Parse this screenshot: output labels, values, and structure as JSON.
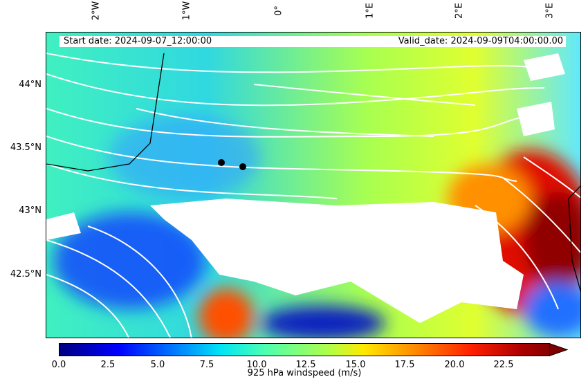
{
  "header": {
    "start_date": "Start date: 2024-09-07_12:00:00",
    "valid_date": "Valid_date: 2024-09-09T04:00:00.00"
  },
  "lon_labels": [
    "2°W",
    "1°W",
    "0°",
    "1°E",
    "2°E",
    "3°E"
  ],
  "lat_labels": [
    "44°N",
    "43.5°N",
    "43°N",
    "42.5°N"
  ],
  "colorbar": {
    "label": "925 hPa windspeed (m/s)",
    "ticks": [
      "0.0",
      "2.5",
      "5.0",
      "7.5",
      "10.0",
      "12.5",
      "15.0",
      "17.5",
      "20.0",
      "22.5"
    ],
    "range": [
      0,
      25
    ],
    "extend": "max"
  },
  "markers": [
    {
      "name": "point-1"
    },
    {
      "name": "point-2"
    }
  ]
}
